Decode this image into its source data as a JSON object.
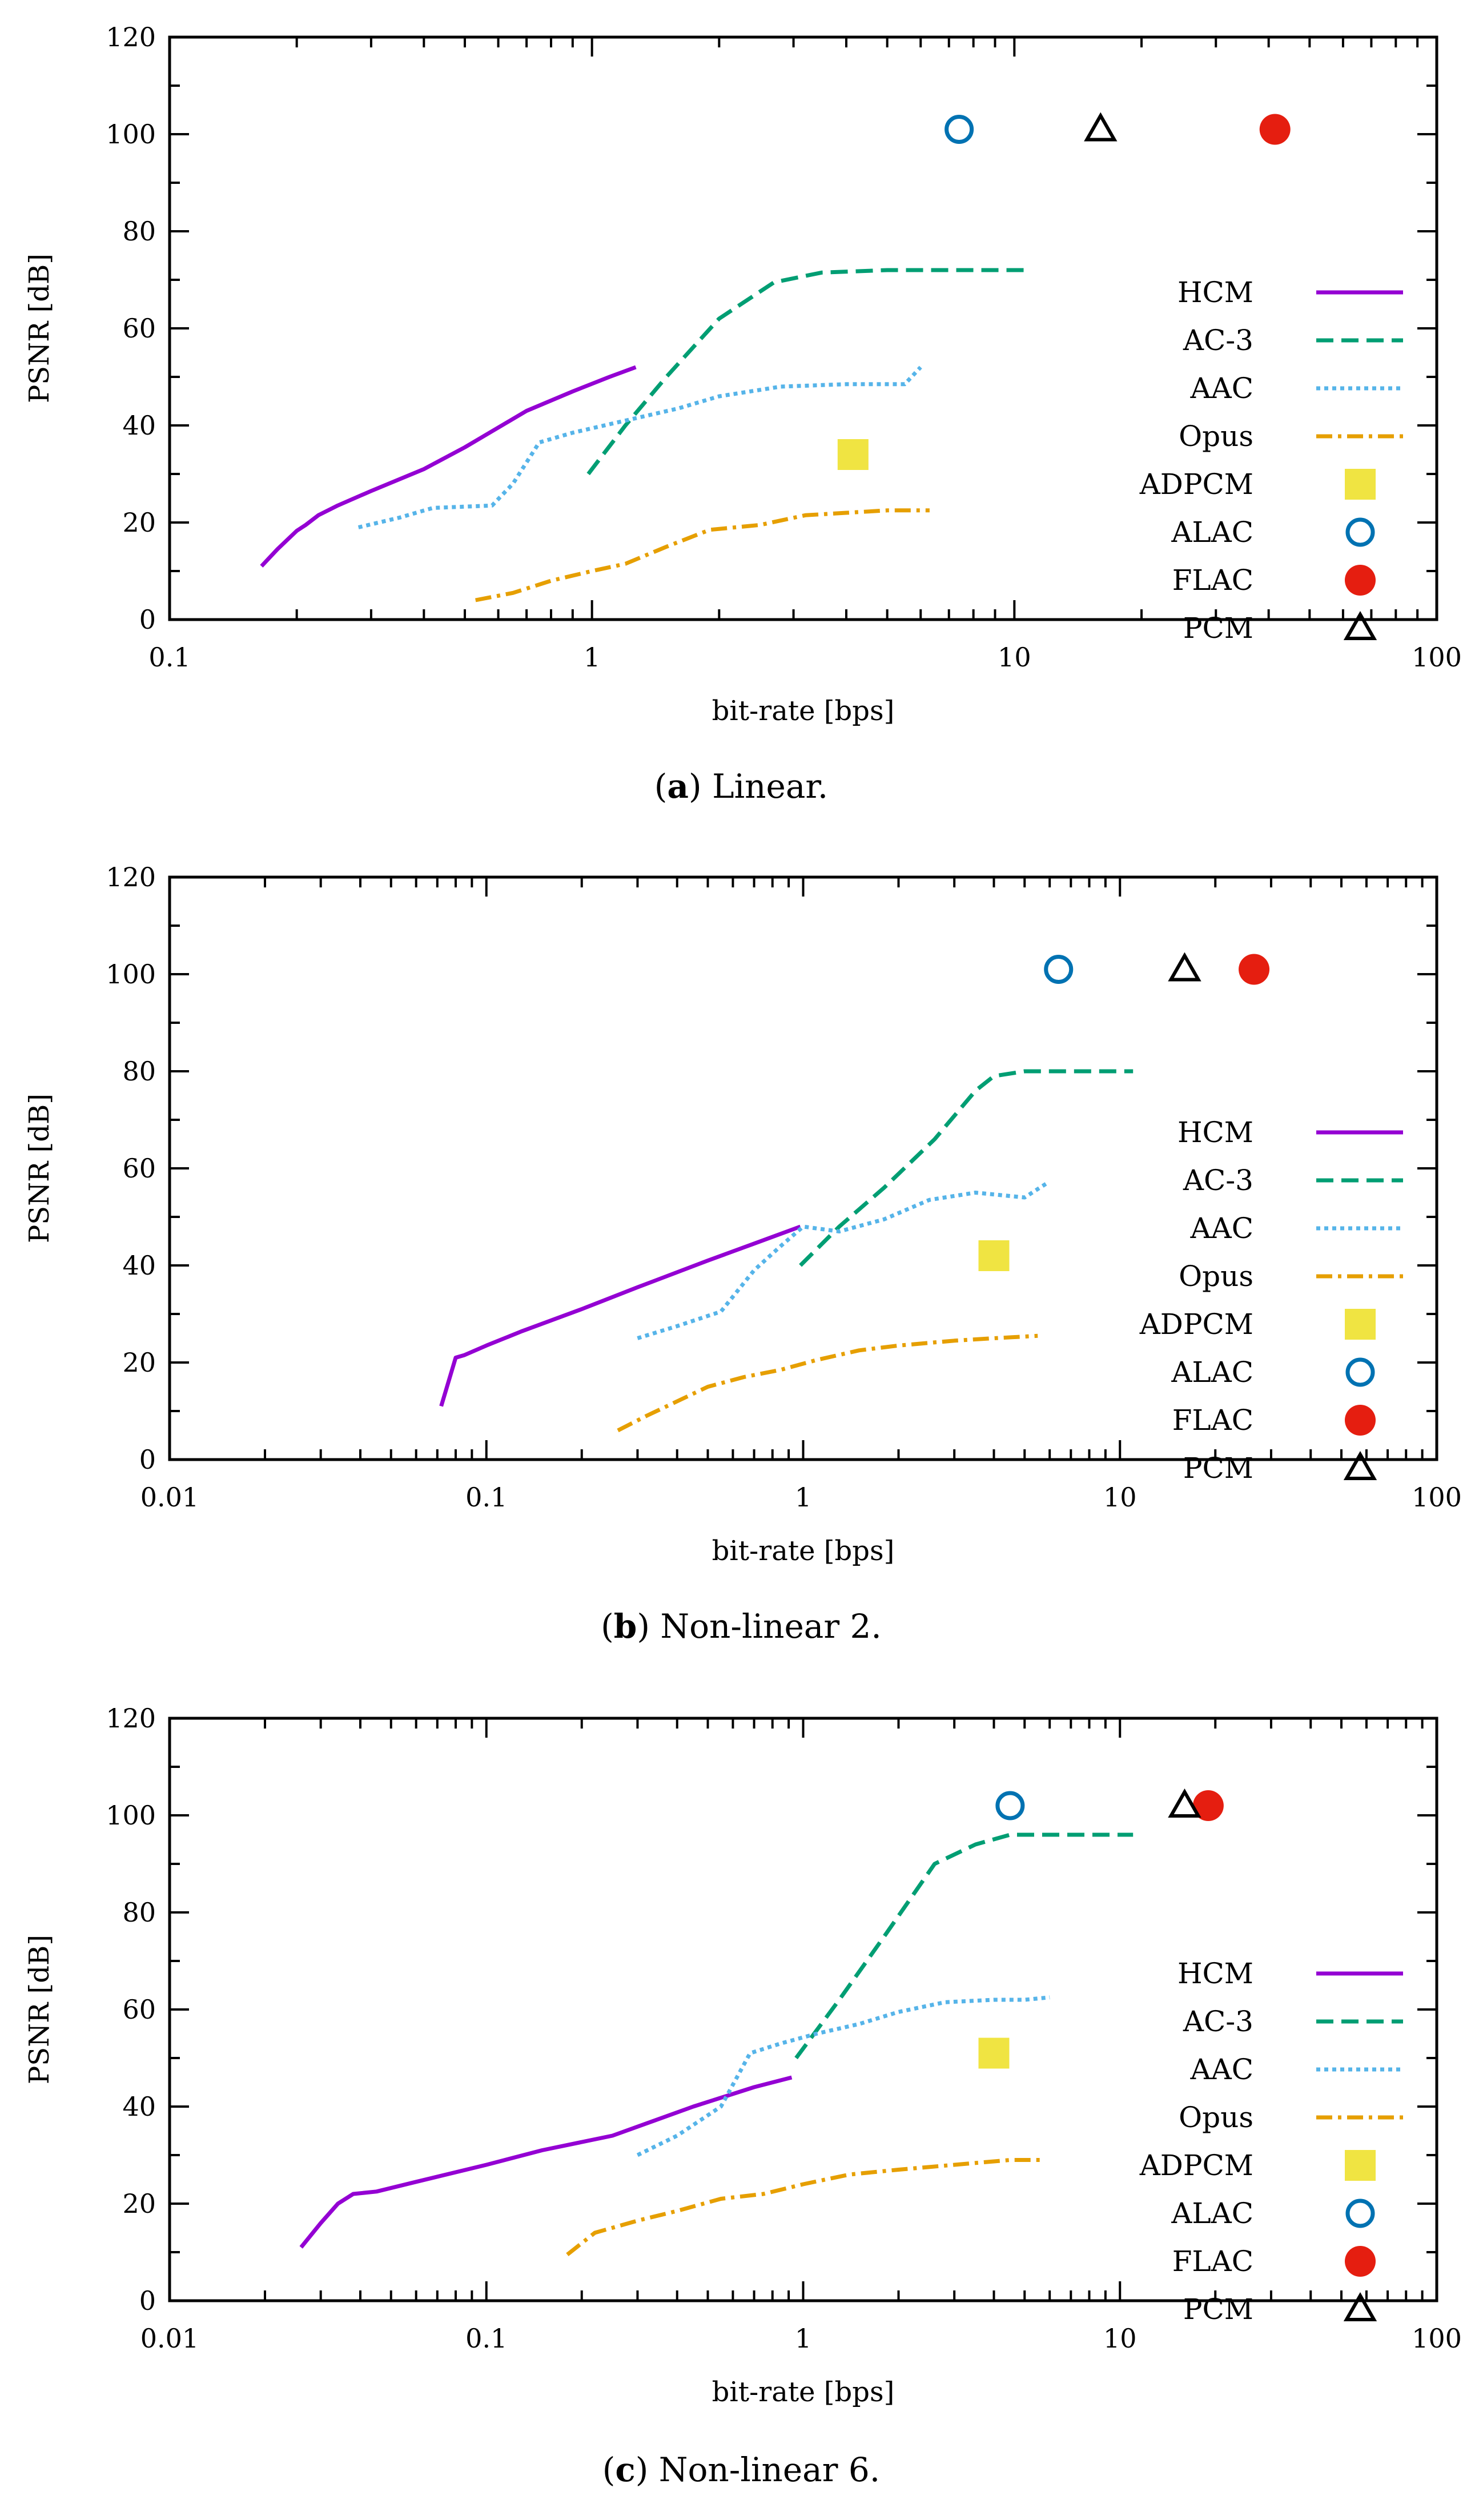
{
  "chart_data": [
    {
      "type": "line",
      "caption_letter": "a",
      "caption_text": "Linear.",
      "xlabel": "bit-rate [bps]",
      "ylabel": "PSNR [dB]",
      "xscale": "log",
      "xlim": [
        0.1,
        100
      ],
      "ylim": [
        0,
        120
      ],
      "xticks": [
        0.1,
        1,
        10,
        100
      ],
      "xtick_labels": [
        "0.1",
        "1",
        "10",
        "100"
      ],
      "yticks": [
        0,
        20,
        40,
        60,
        80,
        100,
        120
      ],
      "ytick_labels": [
        "0",
        "20",
        "40",
        "60",
        "80",
        "100",
        "120"
      ],
      "legend_position": "right",
      "series": [
        {
          "name": "HCM",
          "style": "solid",
          "color": "#9400d3",
          "x": [
            0.165,
            0.18,
            0.2,
            0.21,
            0.225,
            0.25,
            0.3,
            0.4,
            0.5,
            0.7,
            0.9,
            1.1,
            1.27
          ],
          "y": [
            11,
            14.5,
            18.3,
            19.5,
            21.5,
            23.5,
            26.5,
            31,
            35.5,
            43,
            47,
            50,
            52
          ]
        },
        {
          "name": "AC-3",
          "style": "dashed",
          "color": "#009e73",
          "x": [
            0.98,
            1.2,
            1.5,
            2.0,
            2.7,
            3.5,
            5.0,
            7.0,
            10.7
          ],
          "y": [
            30,
            40,
            50,
            62,
            69.5,
            71.5,
            72,
            72,
            72
          ]
        },
        {
          "name": "AAC",
          "style": "dotted",
          "color": "#56b4e9",
          "x": [
            0.28,
            0.35,
            0.42,
            0.58,
            0.65,
            0.75,
            0.9,
            1.2,
            1.6,
            2.0,
            2.8,
            4.0,
            5.5,
            6.0
          ],
          "y": [
            19,
            21,
            23,
            23.5,
            28,
            36.5,
            38.5,
            41,
            43.5,
            46,
            48,
            48.5,
            48.5,
            52
          ]
        },
        {
          "name": "Opus",
          "style": "dashdot",
          "color": "#e69f00",
          "x": [
            0.53,
            0.65,
            0.8,
            1.0,
            1.2,
            1.5,
            1.9,
            2.5,
            3.2,
            4.0,
            5.0,
            6.3
          ],
          "y": [
            4,
            5.5,
            8,
            10,
            11.5,
            15,
            18.5,
            19.5,
            21.5,
            22,
            22.5,
            22.5
          ]
        },
        {
          "name": "ADPCM",
          "style": "marker-square",
          "color": "#f0e442",
          "x": [
            4.15
          ],
          "y": [
            34
          ]
        },
        {
          "name": "ALAC",
          "style": "marker-circle-open",
          "color": "#0072b2",
          "x": [
            7.4
          ],
          "y": [
            101
          ]
        },
        {
          "name": "FLAC",
          "style": "marker-circle-filled",
          "color": "#e51e10",
          "x": [
            41.4
          ],
          "y": [
            101
          ]
        },
        {
          "name": "PCM",
          "style": "marker-triangle-open",
          "color": "#000000",
          "x": [
            16.0
          ],
          "y": [
            101
          ]
        }
      ]
    },
    {
      "type": "line",
      "caption_letter": "b",
      "caption_text": "Non-linear 2.",
      "xlabel": "bit-rate [bps]",
      "ylabel": "PSNR [dB]",
      "xscale": "log",
      "xlim": [
        0.01,
        100
      ],
      "ylim": [
        0,
        120
      ],
      "xticks": [
        0.01,
        0.1,
        1,
        10,
        100
      ],
      "xtick_labels": [
        "0.01",
        "0.1",
        "1",
        "10",
        "100"
      ],
      "yticks": [
        0,
        20,
        40,
        60,
        80,
        100,
        120
      ],
      "ytick_labels": [
        "0",
        "20",
        "40",
        "60",
        "80",
        "100",
        "120"
      ],
      "legend_position": "right",
      "series": [
        {
          "name": "HCM",
          "style": "solid",
          "color": "#9400d3",
          "x": [
            0.072,
            0.08,
            0.085,
            0.1,
            0.13,
            0.2,
            0.3,
            0.5,
            0.7,
            0.98
          ],
          "y": [
            11,
            21,
            21.5,
            23.5,
            26.5,
            31,
            35.5,
            41,
            44.5,
            48
          ]
        },
        {
          "name": "AC-3",
          "style": "dashed",
          "color": "#009e73",
          "x": [
            0.98,
            1.3,
            1.8,
            2.6,
            3.5,
            4.0,
            5.0,
            7.0,
            11.0
          ],
          "y": [
            40,
            48,
            56,
            66,
            76,
            79,
            80,
            80,
            80
          ]
        },
        {
          "name": "AAC",
          "style": "dotted",
          "color": "#56b4e9",
          "x": [
            0.3,
            0.4,
            0.55,
            0.7,
            0.85,
            1.0,
            1.3,
            1.8,
            2.5,
            3.5,
            5.0,
            5.9
          ],
          "y": [
            25,
            27.5,
            30.5,
            39,
            44,
            48,
            47,
            49.5,
            53.5,
            55,
            54,
            57
          ]
        },
        {
          "name": "Opus",
          "style": "dashdot",
          "color": "#e69f00",
          "x": [
            0.26,
            0.32,
            0.4,
            0.5,
            0.65,
            0.85,
            1.1,
            1.5,
            2.0,
            3.0,
            4.0,
            5.5
          ],
          "y": [
            6,
            9,
            12,
            15,
            17,
            18.5,
            20.5,
            22.5,
            23.5,
            24.5,
            25,
            25.5
          ]
        },
        {
          "name": "ADPCM",
          "style": "marker-square",
          "color": "#f0e442",
          "x": [
            4.0
          ],
          "y": [
            42
          ]
        },
        {
          "name": "ALAC",
          "style": "marker-circle-open",
          "color": "#0072b2",
          "x": [
            6.4
          ],
          "y": [
            101
          ]
        },
        {
          "name": "FLAC",
          "style": "marker-circle-filled",
          "color": "#e51e10",
          "x": [
            26.5
          ],
          "y": [
            101
          ]
        },
        {
          "name": "PCM",
          "style": "marker-triangle-open",
          "color": "#000000",
          "x": [
            16.0
          ],
          "y": [
            101
          ]
        }
      ]
    },
    {
      "type": "line",
      "caption_letter": "c",
      "caption_text": "Non-linear 6.",
      "xlabel": "bit-rate [bps]",
      "ylabel": "PSNR [dB]",
      "xscale": "log",
      "xlim": [
        0.01,
        100
      ],
      "ylim": [
        0,
        120
      ],
      "xticks": [
        0.01,
        0.1,
        1,
        10,
        100
      ],
      "xtick_labels": [
        "0.01",
        "0.1",
        "1",
        "10",
        "100"
      ],
      "yticks": [
        0,
        20,
        40,
        60,
        80,
        100,
        120
      ],
      "ytick_labels": [
        "0",
        "20",
        "40",
        "60",
        "80",
        "100",
        "120"
      ],
      "legend_position": "right",
      "series": [
        {
          "name": "HCM",
          "style": "solid",
          "color": "#9400d3",
          "x": [
            0.026,
            0.03,
            0.034,
            0.038,
            0.045,
            0.06,
            0.1,
            0.15,
            0.25,
            0.45,
            0.7,
            0.92
          ],
          "y": [
            11,
            16,
            20,
            22,
            22.5,
            24.5,
            28,
            31,
            34,
            40,
            44,
            46
          ]
        },
        {
          "name": "AC-3",
          "style": "dashed",
          "color": "#009e73",
          "x": [
            0.95,
            1.3,
            1.8,
            2.6,
            3.5,
            4.5,
            6.0,
            8.0,
            11.0
          ],
          "y": [
            50,
            62,
            75,
            90,
            94,
            96,
            96,
            96,
            96
          ]
        },
        {
          "name": "AAC",
          "style": "dotted",
          "color": "#56b4e9",
          "x": [
            0.3,
            0.4,
            0.55,
            0.68,
            0.85,
            1.1,
            1.5,
            2.0,
            2.8,
            4.0,
            5.0,
            6.0
          ],
          "y": [
            30,
            34,
            40,
            51,
            53,
            55,
            57,
            59.5,
            61.5,
            62,
            62,
            62.5
          ]
        },
        {
          "name": "Opus",
          "style": "dashdot",
          "color": "#e69f00",
          "x": [
            0.18,
            0.22,
            0.3,
            0.4,
            0.55,
            0.75,
            1.0,
            1.4,
            2.0,
            3.0,
            4.5,
            5.8
          ],
          "y": [
            9.5,
            14,
            16.5,
            18.5,
            21,
            22,
            24,
            26,
            27,
            28,
            29,
            29
          ]
        },
        {
          "name": "ADPCM",
          "style": "marker-square",
          "color": "#f0e442",
          "x": [
            4.0
          ],
          "y": [
            51
          ]
        },
        {
          "name": "ALAC",
          "style": "marker-circle-open",
          "color": "#0072b2",
          "x": [
            4.5
          ],
          "y": [
            102
          ]
        },
        {
          "name": "FLAC",
          "style": "marker-circle-filled",
          "color": "#e51e10",
          "x": [
            19.0
          ],
          "y": [
            102
          ]
        },
        {
          "name": "PCM",
          "style": "marker-triangle-open",
          "color": "#000000",
          "x": [
            16.0
          ],
          "y": [
            102
          ]
        }
      ]
    }
  ]
}
